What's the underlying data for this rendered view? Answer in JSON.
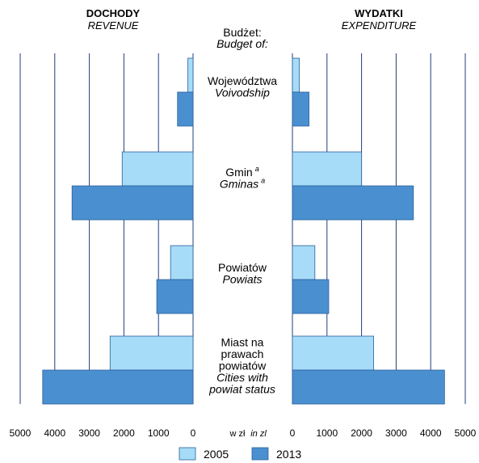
{
  "chart_data": {
    "type": "bar",
    "orientation": "horizontal-butterfly",
    "panels": {
      "left": {
        "title": "DOCHODY",
        "subtitle": "REVENUE"
      },
      "right": {
        "title": "WYDATKI",
        "subtitle": "EXPENDITURE"
      }
    },
    "center_header": {
      "line1": "Budżet:",
      "line2": "Budget of:"
    },
    "categories": [
      {
        "pl": [
          "Województwa"
        ],
        "en": [
          "Voivodship"
        ],
        "sup": ""
      },
      {
        "pl": [
          "Gmin"
        ],
        "en": [
          "Gminas"
        ],
        "sup": "a"
      },
      {
        "pl": [
          "Powiatów"
        ],
        "en": [
          "Powiats"
        ],
        "sup": ""
      },
      {
        "pl": [
          "Miast na",
          "prawach",
          "powiatów"
        ],
        "en": [
          "Cities with",
          "powiat status"
        ],
        "sup": ""
      }
    ],
    "series": [
      {
        "name": "2005",
        "color": "#a6dcf7",
        "revenue": [
          150,
          2050,
          650,
          2400
        ],
        "expenditure": [
          200,
          2000,
          650,
          2350
        ]
      },
      {
        "name": "2013",
        "color": "#4a90d0",
        "revenue": [
          450,
          3500,
          1050,
          4350
        ],
        "expenditure": [
          480,
          3500,
          1050,
          4400
        ]
      }
    ],
    "xlim": [
      0,
      5000
    ],
    "ticks": [
      "5000",
      "4000",
      "3000",
      "2000",
      "1000",
      "0"
    ],
    "ticks_right": [
      "0",
      "1000",
      "2000",
      "3000",
      "4000",
      "5000"
    ],
    "unit_pl": "w zł",
    "unit_en": "in zl",
    "grid": true,
    "legend_position": "bottom-center"
  }
}
